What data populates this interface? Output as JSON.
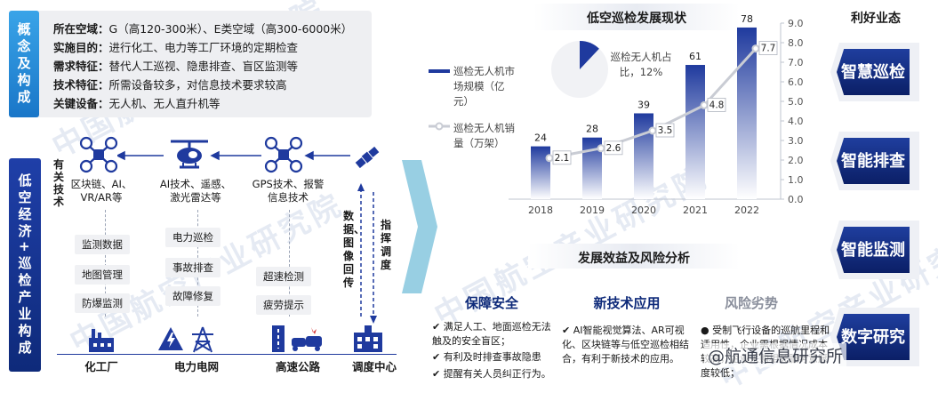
{
  "watermark": "中国航空产业研究院",
  "source": "@航通信息研究所",
  "concept": {
    "tab": "概念及构成",
    "rows": [
      {
        "label": "所在空域：",
        "text": "G（高120-300米）、E类空域（高300-6000米）"
      },
      {
        "label": "实施目的：",
        "text": "进行化工、电力等工厂环境的定期检查"
      },
      {
        "label": "需求特征：",
        "text": "替代人工巡视、隐患排查、盲区监测等"
      },
      {
        "label": "技术特征：",
        "text": "所需设备较多，对信息技术要求较高"
      },
      {
        "label": "关键设备：",
        "text": "无人机、无人直升机等"
      }
    ]
  },
  "industry": {
    "tab": "低空经济+巡检产业构成",
    "tech_label": "有关技术",
    "techs": [
      {
        "icon": "drone-icon",
        "text": "区块链、AI、VR/AR等"
      },
      {
        "icon": "helicopter-icon",
        "text": "AI技术、遥感、激光雷达等"
      },
      {
        "icon": "drone-icon",
        "text": "GPS技术、报警信息技术"
      },
      {
        "icon": "satellite-icon",
        "text": ""
      }
    ],
    "functions": [
      [
        "监测数据",
        "地图管理",
        "防爆监测"
      ],
      [
        "电力巡检",
        "事故排查",
        "故障修复"
      ],
      [
        "超速检测",
        "疲劳提示"
      ]
    ],
    "data_upload": "数据、图像回传",
    "dispatch": "指挥调度",
    "scenes": [
      {
        "icon": "factory-icon",
        "label": "化工厂"
      },
      {
        "icon": "power-grid-icon",
        "label": "电力电网"
      },
      {
        "icon": "highway-icon",
        "label": "高速公路"
      },
      {
        "icon": "dispatch-center-icon",
        "label": "调度中心"
      }
    ]
  },
  "chart": {
    "title": "低空巡检发展现状",
    "pie_label": "巡检无人机占比，12%",
    "legend_bar": "巡检无人机市场规模（亿元）",
    "legend_line": "巡检无人机销量（万架）"
  },
  "chart_data": {
    "type": "bar",
    "categories": [
      "2018",
      "2019",
      "2020",
      "2021",
      "2022"
    ],
    "series": [
      {
        "name": "巡检无人机市场规模（亿元）",
        "type": "bar",
        "values": [
          24,
          28,
          39,
          61,
          78
        ]
      },
      {
        "name": "巡检无人机销量（万架）",
        "type": "line",
        "values": [
          2.1,
          2.6,
          3.5,
          4.8,
          7.7
        ],
        "axis": "right"
      }
    ],
    "pie": {
      "value": 12,
      "label": "巡检无人机占比，12%"
    },
    "ylim_left": [
      0,
      80
    ],
    "ylim_right": [
      0,
      9.0
    ],
    "right_ticks": [
      "0.0",
      "1.0",
      "2.0",
      "3.0",
      "4.0",
      "5.0",
      "6.0",
      "7.0",
      "8.0",
      "9.0"
    ],
    "colors": {
      "bar_top": "#1f3a9e",
      "bar_bottom": "#ffffff",
      "line": "#c9ccd4"
    }
  },
  "benefits": {
    "title": "利好业态",
    "items": [
      "智慧巡检",
      "智能排查",
      "智能监测",
      "数字研究"
    ]
  },
  "analysis": {
    "title": "发展效益及风险分析",
    "columns": [
      {
        "head": "保障安全",
        "bullets": [
          "满足人工、地面巡检无法触及的安全盲区；",
          "有利及时排查事故隐患",
          "提醒有关人员纠正行为。"
        ]
      },
      {
        "head": "新技术应用",
        "bullets": [
          "AI智能视觉算法、AR可视化、区块链等与低空巡检相结合，有利于新技术的应用。"
        ]
      },
      {
        "head": "风险劣势",
        "bullets": [
          "受制飞行设备的巡航里程和适用性，企业需根据情况成本较高，企业采购相关服务意愿度较低；"
        ]
      }
    ]
  }
}
